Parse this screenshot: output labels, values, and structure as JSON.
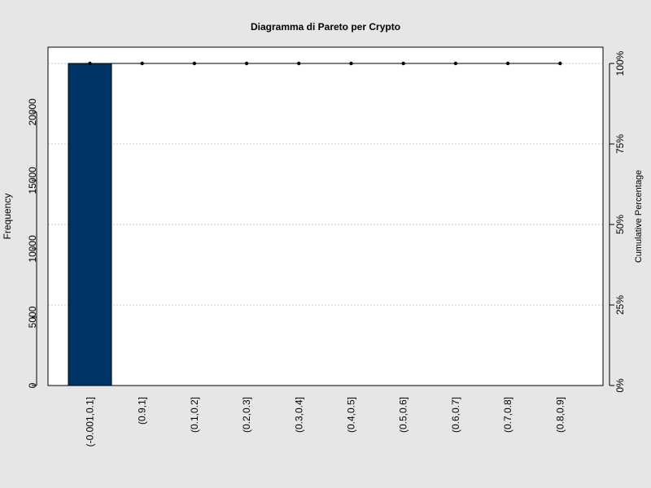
{
  "chart_data": {
    "type": "bar",
    "title": "Diagramma di Pareto per Crypto",
    "xlabel": "",
    "ylabel": "Frequency",
    "y2label": "Cumulative Percentage",
    "categories": [
      "(-0.001,0.1]",
      "(0.9,1]",
      "(0.1,0.2]",
      "(0.2,0.3]",
      "(0.3,0.4]",
      "(0.4,0.5]",
      "(0.5,0.6]",
      "(0.6,0.7]",
      "(0.7,0.8]",
      "(0.8,0.9]"
    ],
    "values": [
      23560,
      0,
      0,
      0,
      0,
      0,
      0,
      0,
      0,
      0
    ],
    "cumulative_percent": [
      100,
      100,
      100,
      100,
      100,
      100,
      100,
      100,
      100,
      100
    ],
    "ylim": [
      0,
      24750
    ],
    "yticks": [
      0,
      5000,
      10000,
      15000,
      20000
    ],
    "y2ticks": [
      "0%",
      "25%",
      "50%",
      "75%",
      "100%"
    ],
    "grid": true,
    "colors": {
      "background": "#e6e6e6",
      "plot_bg": "#ffffff",
      "bar_fill": "#003366",
      "grid": "#c8c8c8",
      "line": "#000000"
    }
  }
}
